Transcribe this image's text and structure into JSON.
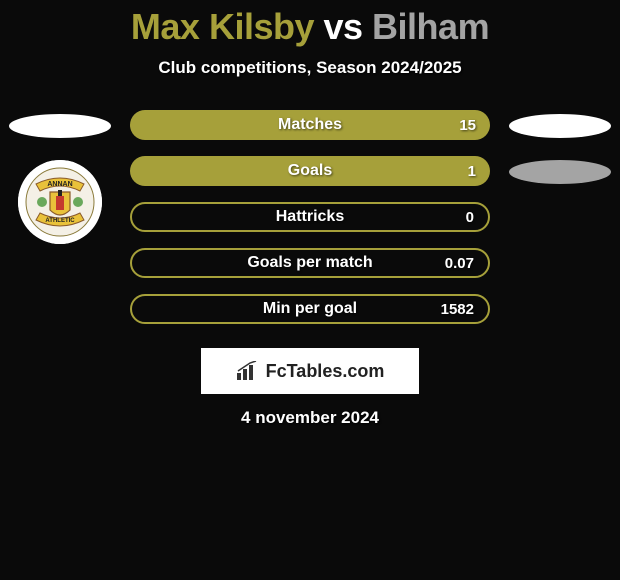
{
  "title": {
    "prefix": "Max Kilsby ",
    "mid": "vs",
    "suffix": " Bilham",
    "prefix_color": "#a6a03a",
    "mid_color": "#ffffff",
    "suffix_color": "#a4a4a4",
    "font_size": 36,
    "font_weight": 900
  },
  "subtitle": "Club competitions, Season 2024/2025",
  "date": "4 november 2024",
  "left_side": {
    "ellipse_bg": "#ffffff",
    "crest": {
      "ring_color": "#ffffff",
      "banner_top": "ANNAN",
      "banner_bottom": "ATHLETIC",
      "shield_bg": "#e9c23a",
      "shield_accent": "#c43a2e",
      "thistle_color": "#6aa85c"
    }
  },
  "right_side": {
    "ellipse_top_bg": "#ffffff",
    "ellipse_bottom_bg": "#a4a4a4"
  },
  "bars": [
    {
      "label": "Matches",
      "value": "15",
      "fill": "#a6a03a",
      "border": "#a6a03a",
      "filled": true
    },
    {
      "label": "Goals",
      "value": "1",
      "fill": "#a6a03a",
      "border": "#a6a03a",
      "filled": true
    },
    {
      "label": "Hattricks",
      "value": "0",
      "fill": "transparent",
      "border": "#a6a03a",
      "filled": false
    },
    {
      "label": "Goals per match",
      "value": "0.07",
      "fill": "transparent",
      "border": "#a6a03a",
      "filled": false
    },
    {
      "label": "Min per goal",
      "value": "1582",
      "fill": "transparent",
      "border": "#a6a03a",
      "filled": false
    }
  ],
  "bar_style": {
    "height": 30,
    "radius": 15,
    "border_width": 2,
    "label_fontsize": 16,
    "value_fontsize": 15,
    "text_color": "#ffffff"
  },
  "logo": {
    "text": "FcTables.com",
    "bg": "#ffffff",
    "text_color": "#222222",
    "icon_color": "#333333"
  },
  "background": "#0a0a0a"
}
